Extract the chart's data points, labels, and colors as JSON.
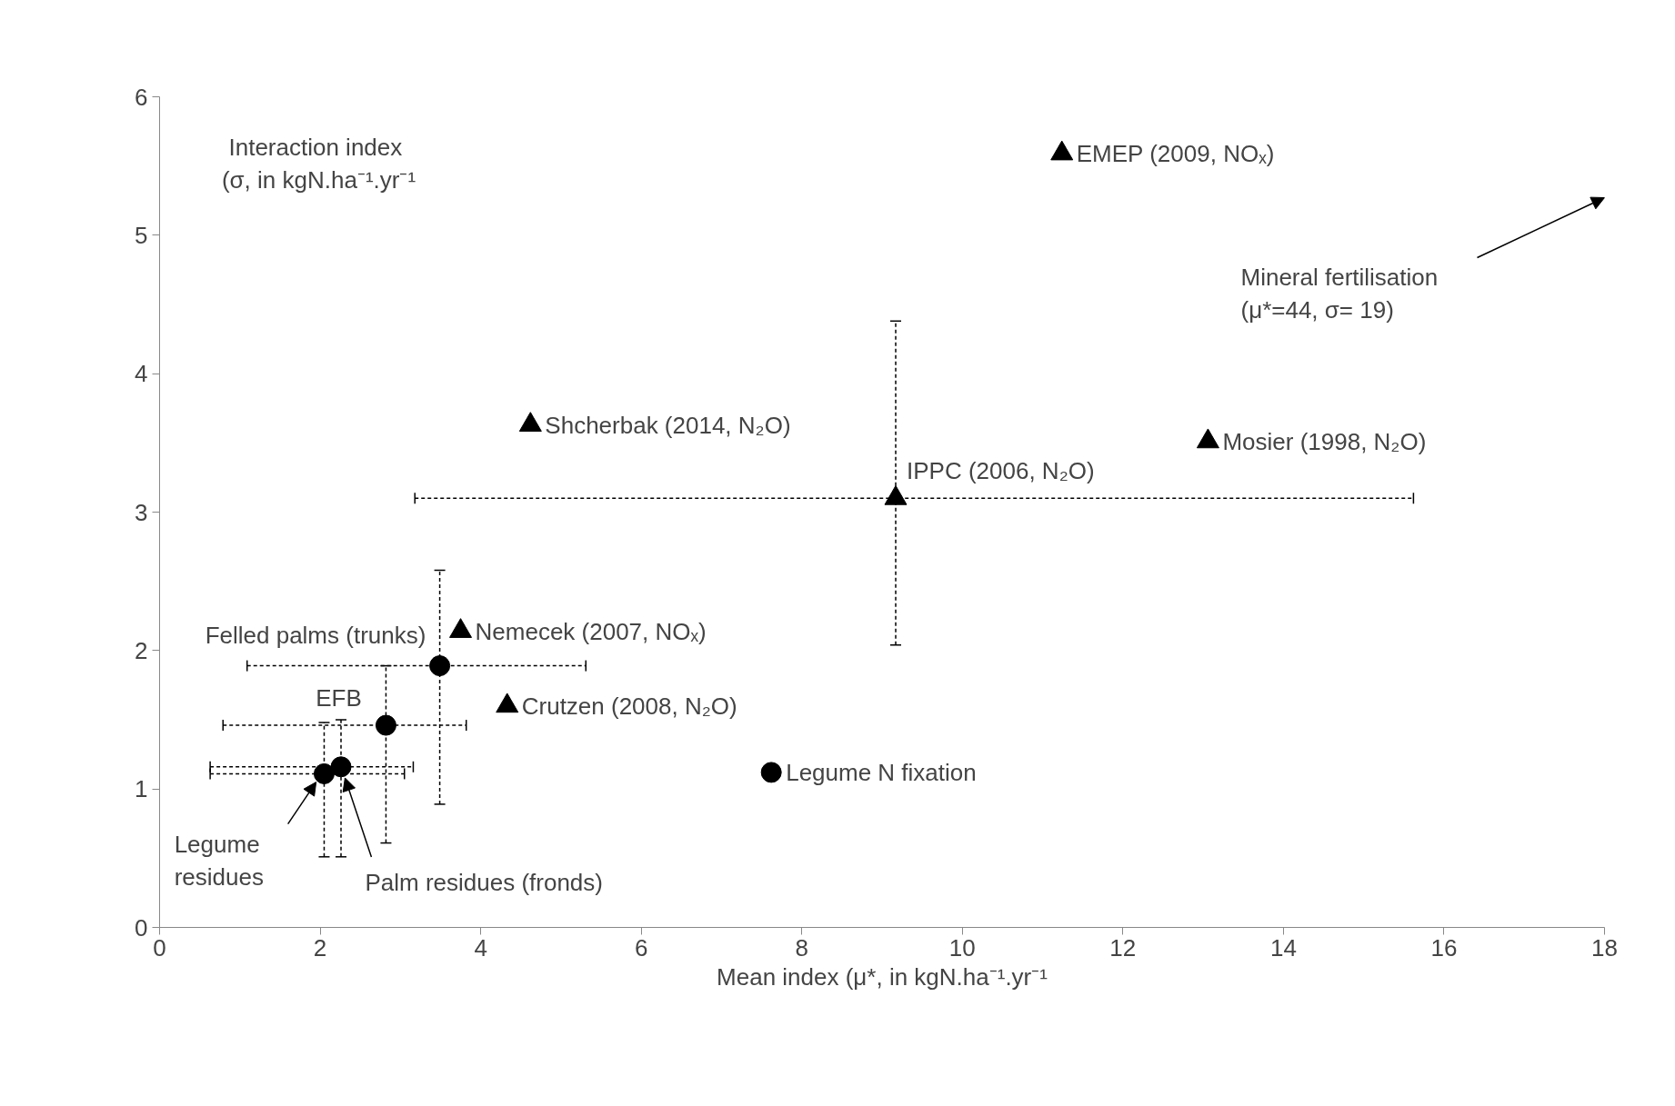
{
  "chart_data": {
    "type": "scatter",
    "xlabel": "Mean index (μ*, in kgN.ha⁻¹.yr⁻¹",
    "ylabel": "Interaction  index\n(σ, in kgN.ha⁻¹.yr⁻¹",
    "xlim": [
      0,
      18
    ],
    "ylim": [
      0,
      6
    ],
    "xticks": [
      0,
      2,
      4,
      6,
      8,
      10,
      12,
      14,
      16,
      18
    ],
    "yticks": [
      0,
      1,
      2,
      3,
      4,
      5,
      6
    ],
    "grid": false,
    "series": [
      {
        "color": "#000000",
        "marker": "circle",
        "x": [
          3.49,
          2.82,
          2.05,
          2.26,
          7.62
        ],
        "values": [
          1.89,
          1.46,
          1.11,
          1.16,
          1.12
        ],
        "errors": [
          [
            0.89,
            2.58
          ],
          [
            0.61,
            1.89
          ],
          [
            0.51,
            1.48
          ],
          [
            0.51,
            1.5
          ],
          null
        ],
        "xerrors": [
          [
            1.09,
            5.31
          ],
          [
            0.79,
            3.82
          ],
          [
            0.63,
            3.05
          ],
          [
            0.63,
            3.16
          ],
          null
        ]
      },
      {
        "color": "#000000",
        "marker": "triangle",
        "x": [
          11.24,
          4.62,
          13.06,
          9.17,
          3.75,
          4.33
        ],
        "values": [
          5.59,
          3.63,
          3.51,
          3.1,
          2.14,
          1.6
        ],
        "errors": [
          null,
          null,
          null,
          [
            2.04,
            4.38
          ],
          null,
          null
        ],
        "xerrors": [
          null,
          null,
          null,
          [
            3.18,
            15.62
          ],
          null,
          null
        ]
      }
    ],
    "annotations": [
      {
        "text": "EMEP (2009, NOₓ)",
        "x": 11.24,
        "y": 5.59
      },
      {
        "text": "Shcherbak (2014, N₂O)",
        "x": 4.62,
        "y": 3.63
      },
      {
        "text": "Mosier (1998, N₂O)",
        "x": 13.06,
        "y": 3.51
      },
      {
        "text": "IPPC (2006, N₂O)",
        "x": 9.17,
        "y": 3.1
      },
      {
        "text": "Nemecek (2007, NOₓ)",
        "x": 3.75,
        "y": 2.14
      },
      {
        "text": "Crutzen (2008, N₂O)",
        "x": 4.33,
        "y": 1.6
      },
      {
        "text": "Felled palms  (trunks)",
        "x": 3.49,
        "y": 1.89
      },
      {
        "text": "EFB",
        "x": 2.82,
        "y": 1.46
      },
      {
        "text": "Legume N fixation",
        "x": 7.62,
        "y": 1.12
      },
      {
        "text": "Legume\nresidues",
        "x": 1.95,
        "y": 1.05
      },
      {
        "text": "Palm residues  (fronds)",
        "x": 2.31,
        "y": 1.08
      },
      "Mineral fertilisation\n(μ*=44, σ= 19)"
    ]
  }
}
